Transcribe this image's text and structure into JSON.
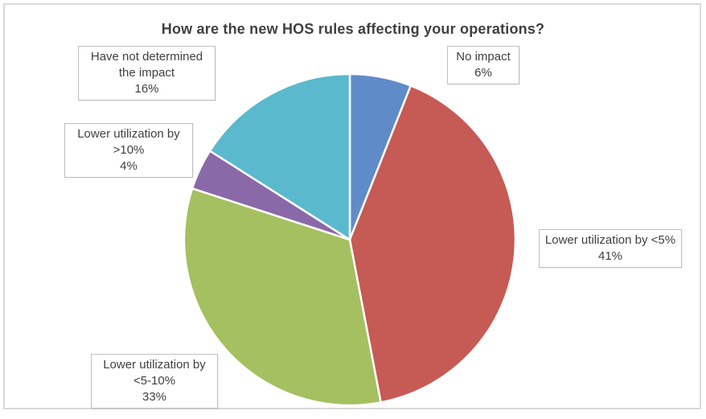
{
  "chart_data": {
    "type": "pie",
    "title": "How are the new HOS rules affecting your operations?",
    "start_angle_deg": 0,
    "direction": "clockwise",
    "legend_position": "none",
    "label_style": "callout boxes with category name and percent",
    "total_percent": 100,
    "slices": [
      {
        "label": "No impact",
        "percent": 6,
        "percent_label": "6%",
        "color": "#5F8CC8"
      },
      {
        "label": "Lower utilization by <5%",
        "percent": 41,
        "percent_label": "41%",
        "color": "#C65A55"
      },
      {
        "label": "Lower utilization by <5-10%",
        "percent": 33,
        "percent_label": "33%",
        "color": "#A5C060"
      },
      {
        "label": "Lower utilization by >10%",
        "percent": 4,
        "percent_label": "4%",
        "color": "#8A69A8"
      },
      {
        "label": "Have not determined the impact",
        "percent": 16,
        "percent_label": "16%",
        "color": "#5AB9CD"
      }
    ],
    "pie_separator_color": "#FFFFFF",
    "frame_border_color": "#D9D9D9",
    "title_color": "#3F3F3F",
    "label_text_color": "#404040"
  }
}
